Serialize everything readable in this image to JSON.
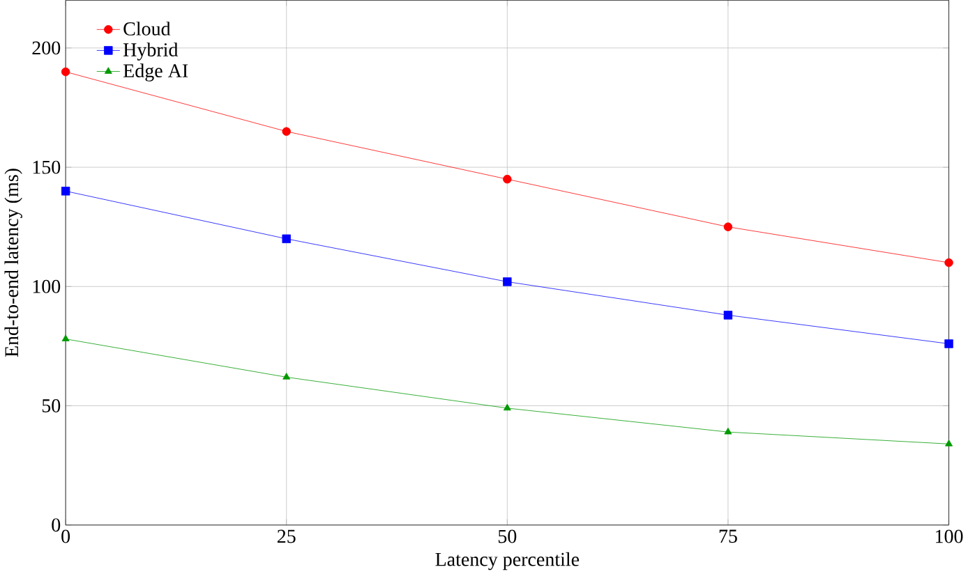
{
  "chart_data": {
    "type": "line",
    "xlabel": "Latency percentile",
    "ylabel": "End-to-end latency (ms)",
    "x": [
      0,
      25,
      50,
      75,
      100
    ],
    "series": [
      {
        "name": "Cloud",
        "color": "#ff0000",
        "marker": "circle",
        "values": [
          190,
          165,
          145,
          125,
          110
        ]
      },
      {
        "name": "Hybrid",
        "color": "#0000ff",
        "marker": "square",
        "values": [
          140,
          120,
          102,
          88,
          76
        ]
      },
      {
        "name": "Edge AI",
        "color": "#009900",
        "marker": "triangle",
        "values": [
          78,
          62,
          49,
          39,
          34
        ]
      }
    ],
    "xlim": [
      0,
      100
    ],
    "ylim": [
      0,
      220
    ],
    "xticks": [
      0,
      25,
      50,
      75,
      100
    ],
    "yticks": [
      0,
      50,
      100,
      150,
      200
    ],
    "grid": true,
    "legend": "top left",
    "line_style": "solid"
  }
}
